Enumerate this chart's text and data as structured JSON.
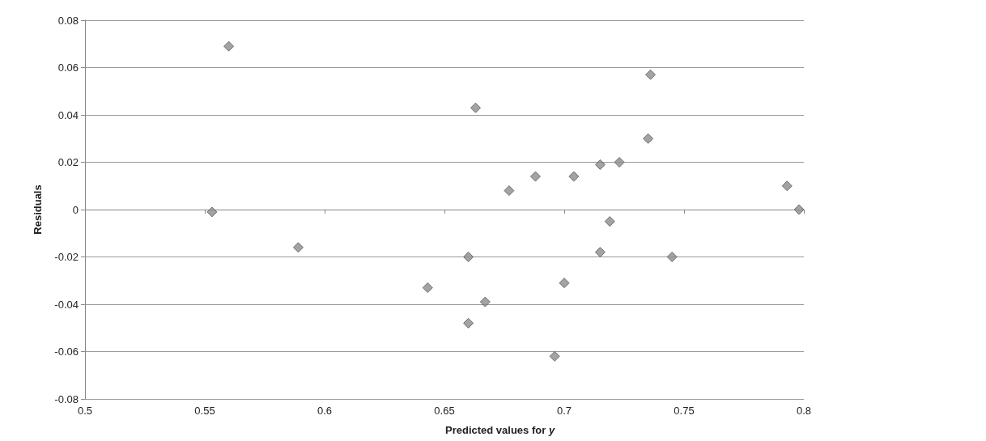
{
  "chart_data": {
    "type": "scatter",
    "xlabel": "Predicted values for y",
    "ylabel": "Residuals",
    "x": [
      0.553,
      0.56,
      0.589,
      0.643,
      0.66,
      0.66,
      0.663,
      0.667,
      0.677,
      0.688,
      0.696,
      0.7,
      0.704,
      0.715,
      0.715,
      0.719,
      0.723,
      0.735,
      0.736,
      0.745,
      0.793,
      0.798
    ],
    "values": [
      -0.001,
      0.069,
      -0.016,
      -0.033,
      -0.02,
      -0.048,
      0.043,
      -0.039,
      0.008,
      0.014,
      -0.062,
      -0.031,
      0.014,
      -0.018,
      0.019,
      -0.005,
      0.02,
      0.03,
      0.057,
      -0.02,
      0.01,
      0.0
    ],
    "color": "#8c8c8c",
    "marker": "diamond",
    "xlim": [
      0.5,
      0.8
    ],
    "xticks": [
      0.5,
      0.55,
      0.6,
      0.65,
      0.7,
      0.75,
      0.8
    ],
    "ylim": [
      -0.08,
      0.08
    ],
    "yticks": [
      -0.08,
      -0.06,
      -0.04,
      -0.02,
      0,
      0.02,
      0.04,
      0.06,
      0.08
    ],
    "grid": "y"
  }
}
